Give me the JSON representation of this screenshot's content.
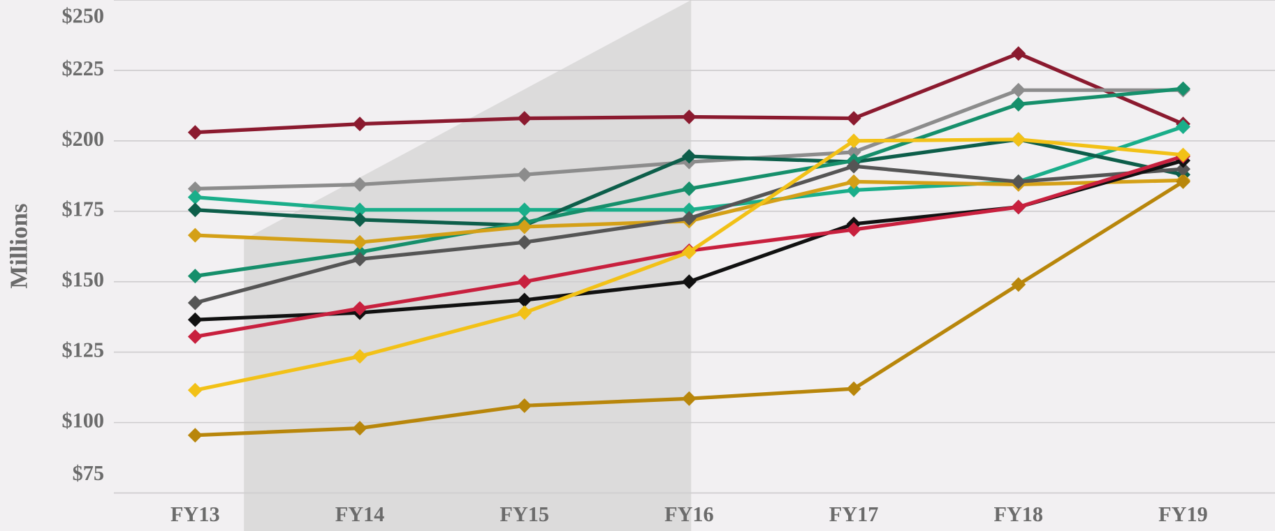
{
  "chart_data": {
    "type": "line",
    "y_label": "Millions",
    "categories": [
      "FY13",
      "FY14",
      "FY15",
      "FY16",
      "FY17",
      "FY18",
      "FY19"
    ],
    "ylim": [
      75,
      250
    ],
    "yticks": [
      {
        "value": 75,
        "label": "$75"
      },
      {
        "value": 100,
        "label": "$100"
      },
      {
        "value": 125,
        "label": "$125"
      },
      {
        "value": 150,
        "label": "$150"
      },
      {
        "value": 175,
        "label": "$175"
      },
      {
        "value": 200,
        "label": "$200"
      },
      {
        "value": 225,
        "label": "$225"
      },
      {
        "value": 250,
        "label": "$250"
      }
    ],
    "grid": true,
    "series": [
      {
        "color": "#8b1a2f",
        "values": [
          203,
          206,
          208,
          208.5,
          208,
          231,
          206
        ]
      },
      {
        "color": "#8c8c8c",
        "values": [
          183,
          184.5,
          188,
          192.5,
          196,
          218,
          218
        ]
      },
      {
        "color": "#1aae8a",
        "values": [
          180,
          175.5,
          175.5,
          175.5,
          182.5,
          185.5,
          205
        ]
      },
      {
        "color": "#0d5e4a",
        "values": [
          175.5,
          172,
          170,
          194.5,
          192.5,
          200.5,
          188
        ]
      },
      {
        "color": "#168f6b",
        "values": [
          152,
          160.5,
          171,
          183,
          193,
          213,
          218.5
        ]
      },
      {
        "color": "#d4a017",
        "values": [
          166.5,
          164,
          169.5,
          171.5,
          185.5,
          184.5,
          186
        ]
      },
      {
        "color": "#555555",
        "values": [
          142.5,
          158,
          164,
          172.5,
          191,
          185.5,
          190
        ]
      },
      {
        "color": "#111111",
        "values": [
          136.5,
          139,
          143.5,
          150,
          170.5,
          176.5,
          193
        ]
      },
      {
        "color": "#c8203e",
        "values": [
          130.5,
          140.5,
          150,
          161,
          168.5,
          176.5,
          194.5
        ]
      },
      {
        "color": "#f2c117",
        "values": [
          111.5,
          123.5,
          139,
          160.5,
          200,
          200.5,
          195
        ]
      },
      {
        "color": "#b8860b",
        "values": [
          95.5,
          98,
          106,
          108.5,
          112,
          149,
          185.5
        ]
      }
    ]
  }
}
